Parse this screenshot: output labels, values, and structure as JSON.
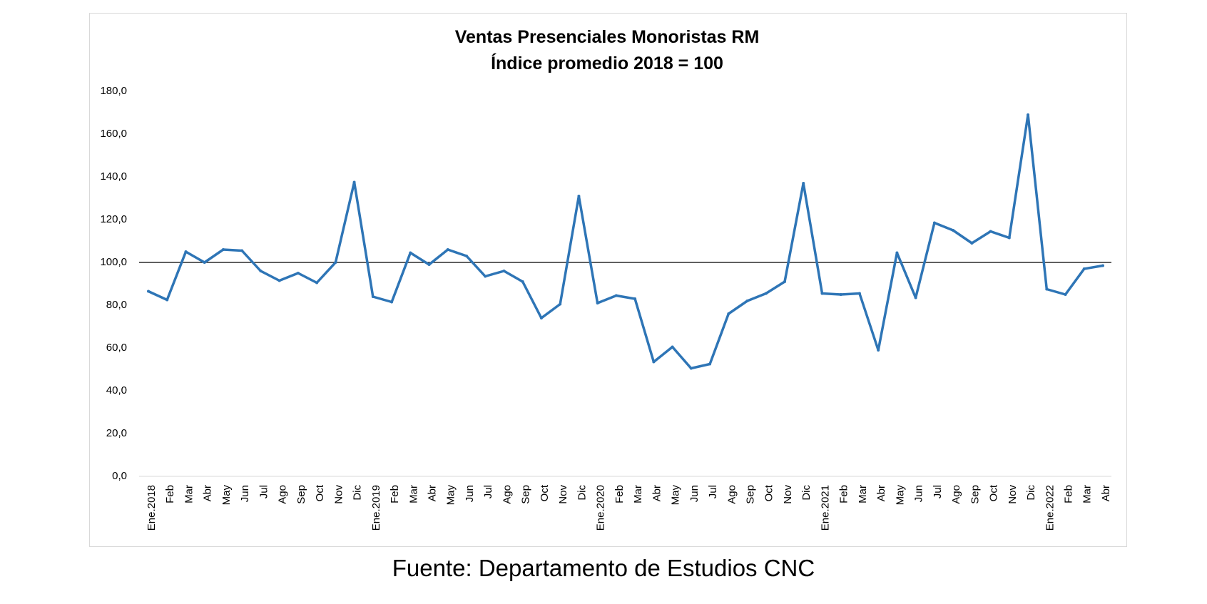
{
  "source": "Fuente: Departamento de Estudios CNC",
  "chart_data": {
    "type": "line",
    "title": [
      "Ventas Presenciales Monoristas RM",
      "Índice promedio 2018 = 100"
    ],
    "xlabel": "",
    "ylabel": "",
    "ylim": [
      0,
      180
    ],
    "yticks": [
      "0,0",
      "20,0",
      "40,0",
      "60,0",
      "80,0",
      "100,0",
      "120,0",
      "140,0",
      "160,0",
      "180,0"
    ],
    "grid": false,
    "legend": "none",
    "reference_line": 100,
    "categories": [
      "Ene.2018",
      "Feb",
      "Mar",
      "Abr",
      "May",
      "Jun",
      "Jul",
      "Ago",
      "Sep",
      "Oct",
      "Nov",
      "Dic",
      "Ene.2019",
      "Feb",
      "Mar",
      "Abr",
      "May",
      "Jun",
      "Jul",
      "Ago",
      "Sep",
      "Oct",
      "Nov",
      "Dic",
      "Ene.2020",
      "Feb",
      "Mar",
      "Abr",
      "May",
      "Jun",
      "Jul",
      "Ago",
      "Sep",
      "Oct",
      "Nov",
      "Dic",
      "Ene.2021",
      "Feb",
      "Mar",
      "Abr",
      "May",
      "Jun",
      "Jul",
      "Ago",
      "Sep",
      "Oct",
      "Nov",
      "Dic",
      "Ene.2022",
      "Feb",
      "Mar",
      "Abr"
    ],
    "series": [
      {
        "color": "#2e75b6",
        "values": [
          86.5,
          82.5,
          105.0,
          100.0,
          106.0,
          105.5,
          96.0,
          91.5,
          95.0,
          90.5,
          100.0,
          137.5,
          84.0,
          81.5,
          104.5,
          99.0,
          106.0,
          103.0,
          93.5,
          96.0,
          91.0,
          74.0,
          80.5,
          131.0,
          81.0,
          84.5,
          83.0,
          53.5,
          60.5,
          50.5,
          52.5,
          76.0,
          82.0,
          85.5,
          91.0,
          137.0,
          85.5,
          85.0,
          85.5,
          59.0,
          104.5,
          83.5,
          118.5,
          115.0,
          109.0,
          114.5,
          111.5,
          169.0,
          87.5,
          85.0,
          97.0,
          98.5
        ]
      }
    ]
  }
}
